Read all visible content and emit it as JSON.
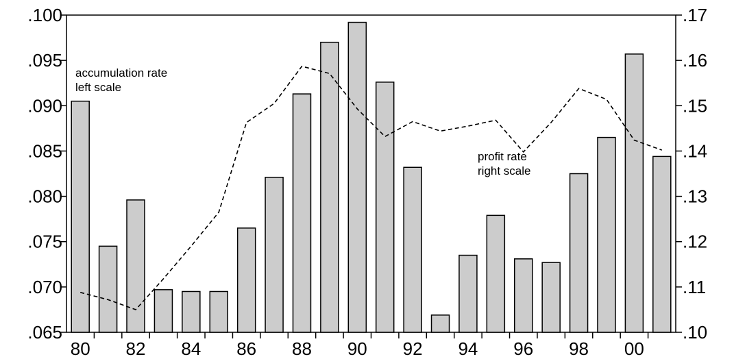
{
  "chart_data": {
    "type": "bar",
    "title": "",
    "xlabel": "",
    "categories": [
      "80",
      "81",
      "82",
      "83",
      "84",
      "85",
      "86",
      "87",
      "88",
      "89",
      "90",
      "91",
      "92",
      "93",
      "94",
      "95",
      "96",
      "97",
      "98",
      "99",
      "00",
      "01"
    ],
    "x_tick_labels": [
      "80",
      "82",
      "84",
      "86",
      "88",
      "90",
      "92",
      "94",
      "96",
      "98",
      "00"
    ],
    "series": [
      {
        "type": "bar",
        "axis": "left",
        "values": [
          0.0905,
          0.0745,
          0.0796,
          0.0697,
          0.0695,
          0.0695,
          0.0765,
          0.0821,
          0.0913,
          0.097,
          0.0992,
          0.0926,
          0.0832,
          0.0669,
          0.0735,
          0.0779,
          0.0731,
          0.0727,
          0.0825,
          0.0865,
          0.0957,
          0.0844
        ],
        "color": "#cccccc"
      },
      {
        "type": "line",
        "axis": "right",
        "style": "dashed",
        "values": [
          0.1088,
          0.1072,
          0.105,
          0.1118,
          0.119,
          0.1265,
          0.1463,
          0.1505,
          0.1587,
          0.1571,
          0.1493,
          0.1432,
          0.1465,
          0.1444,
          0.1455,
          0.1468,
          0.1398,
          0.1463,
          0.1538,
          0.1514,
          0.1424,
          0.1402
        ],
        "color": "#000000"
      }
    ],
    "y_left": {
      "lim": [
        0.065,
        0.1
      ],
      "ticks": [
        0.065,
        0.07,
        0.075,
        0.08,
        0.085,
        0.09,
        0.095,
        0.1
      ],
      "tick_labels": [
        ".065",
        ".070",
        ".075",
        ".080",
        ".085",
        ".090",
        ".095",
        ".100"
      ]
    },
    "y_right": {
      "lim": [
        0.1,
        0.17
      ],
      "ticks": [
        0.1,
        0.11,
        0.12,
        0.13,
        0.14,
        0.15,
        0.16,
        0.17
      ],
      "tick_labels": [
        ".10",
        ".11",
        ".12",
        ".13",
        ".14",
        ".15",
        ".16",
        ".17"
      ]
    },
    "annotations": [
      {
        "lines": [
          "accumulation rate",
          "left scale"
        ]
      },
      {
        "lines": [
          "profit rate",
          "right scale"
        ]
      }
    ],
    "grid": false,
    "legend": "none"
  }
}
